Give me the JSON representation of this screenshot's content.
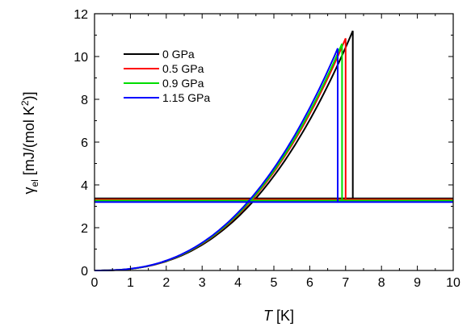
{
  "chart_data": {
    "type": "line",
    "xlabel": "T  [K]",
    "ylabel": "γel  [mJ/(mol K²)]",
    "xlim": [
      0,
      10
    ],
    "ylim": [
      0,
      12
    ],
    "xticks": [
      "0",
      "1",
      "2",
      "3",
      "4",
      "5",
      "6",
      "7",
      "8",
      "9",
      "10"
    ],
    "yticks": [
      "0",
      "2",
      "4",
      "6",
      "8",
      "10",
      "12"
    ],
    "legend_position": "top-left",
    "grid": false,
    "series": [
      {
        "name": "0  GPa",
        "color": "#000000",
        "tc": 7.2,
        "gamma_n": 3.37,
        "peak": 11.2
      },
      {
        "name": "0.5 GPa",
        "color": "#ff0000",
        "tc": 7.0,
        "gamma_n": 3.32,
        "peak": 10.85
      },
      {
        "name": "0.9 GPa",
        "color": "#00dd00",
        "tc": 6.9,
        "gamma_n": 3.27,
        "peak": 10.6
      },
      {
        "name": "1.15 GPa",
        "color": "#0000ff",
        "tc": 6.78,
        "gamma_n": 3.2,
        "peak": 10.38
      }
    ]
  }
}
